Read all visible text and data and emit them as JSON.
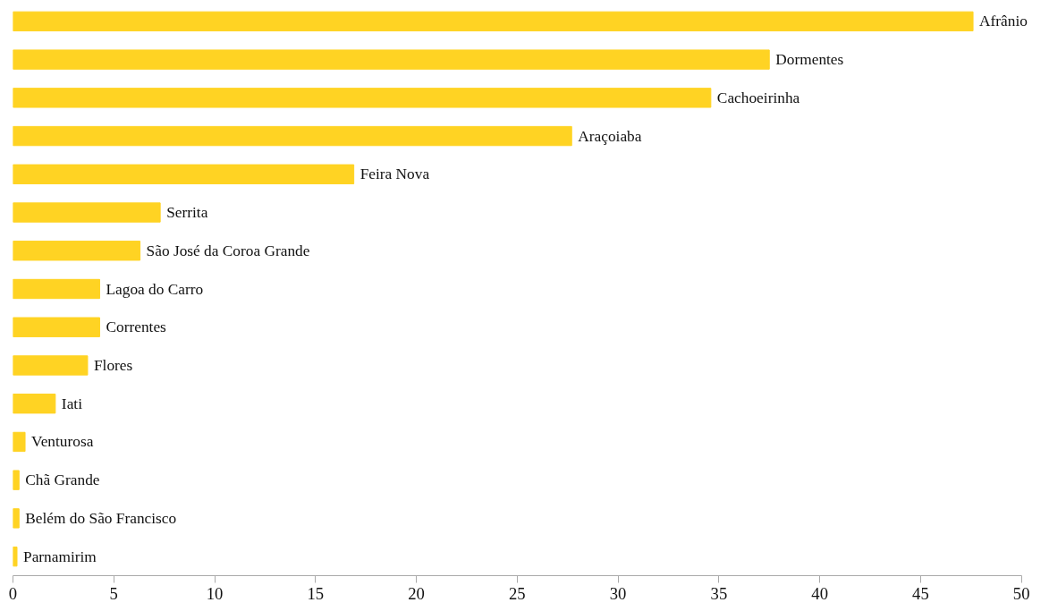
{
  "chart_data": {
    "type": "bar",
    "orientation": "horizontal",
    "categories": [
      "Afrânio",
      "Dormentes",
      "Cachoeirinha",
      "Araçoiaba",
      "Feira Nova",
      "Serrita",
      "São José da Coroa Grande",
      "Lagoa do Carro",
      "Correntes",
      "Flores",
      "Iati",
      "Venturosa",
      "Chã Grande",
      "Belém do São Francisco",
      "Parnamirim"
    ],
    "values": [
      47.6,
      37.5,
      34.6,
      27.7,
      16.9,
      7.3,
      6.3,
      4.3,
      4.3,
      3.7,
      2.1,
      0.6,
      0.3,
      0.3,
      0.2
    ],
    "color": "#ffd323",
    "xlim": [
      0,
      50
    ],
    "xticks": [
      0,
      5,
      10,
      15,
      20,
      25,
      30,
      35,
      40,
      45,
      50
    ],
    "grid": false,
    "tick_labels": "x"
  }
}
